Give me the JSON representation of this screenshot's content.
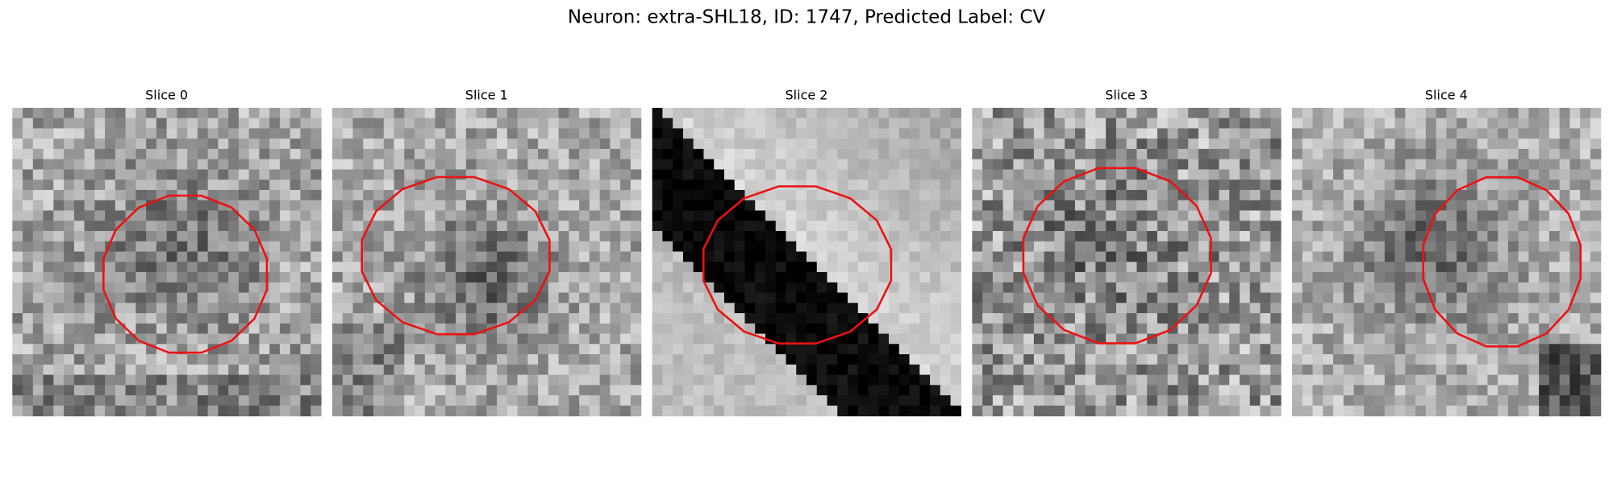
{
  "title": "Neuron: extra-SHL18, ID: 1747, Predicted Label: CV",
  "panels": [
    {
      "title": "Slice 0"
    },
    {
      "title": "Slice 1"
    },
    {
      "title": "Slice 2"
    },
    {
      "title": "Slice 3"
    },
    {
      "title": "Slice 4"
    }
  ]
}
